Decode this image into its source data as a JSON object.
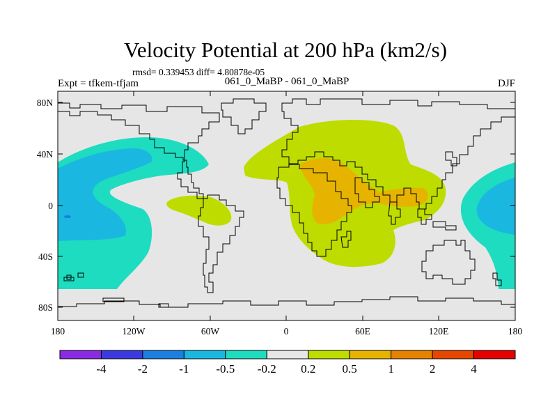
{
  "header": {
    "title": "Velocity Potential at 200 hPa (km2/s)",
    "stats": "rmsd= 0.339453 diff= 4.80878e-05",
    "experiment": "Expt = tfkem-tfjam",
    "period": "061_0_MaBP - 061_0_MaBP",
    "season": "DJF"
  },
  "map": {
    "lat_ticks": [
      "80N",
      "40N",
      "0",
      "40S",
      "80S"
    ],
    "lon_ticks": [
      "180",
      "120W",
      "60W",
      "0",
      "60E",
      "120E",
      "180"
    ],
    "lon_range": [
      -180,
      180
    ],
    "lat_range": [
      -90,
      90
    ],
    "background_color": "#e6e6e6"
  },
  "colorbar": {
    "labels": [
      "-4",
      "-2",
      "-1",
      "-0.5",
      "-0.2",
      "0.2",
      "0.5",
      "1",
      "2",
      "4"
    ],
    "colors": [
      "#8a2be2",
      "#3a3ae0",
      "#1a7fe0",
      "#1ab8e0",
      "#1edcc0",
      "#e6e6e6",
      "#bedc00",
      "#e6b400",
      "#e68200",
      "#e64600",
      "#e60000"
    ]
  }
}
